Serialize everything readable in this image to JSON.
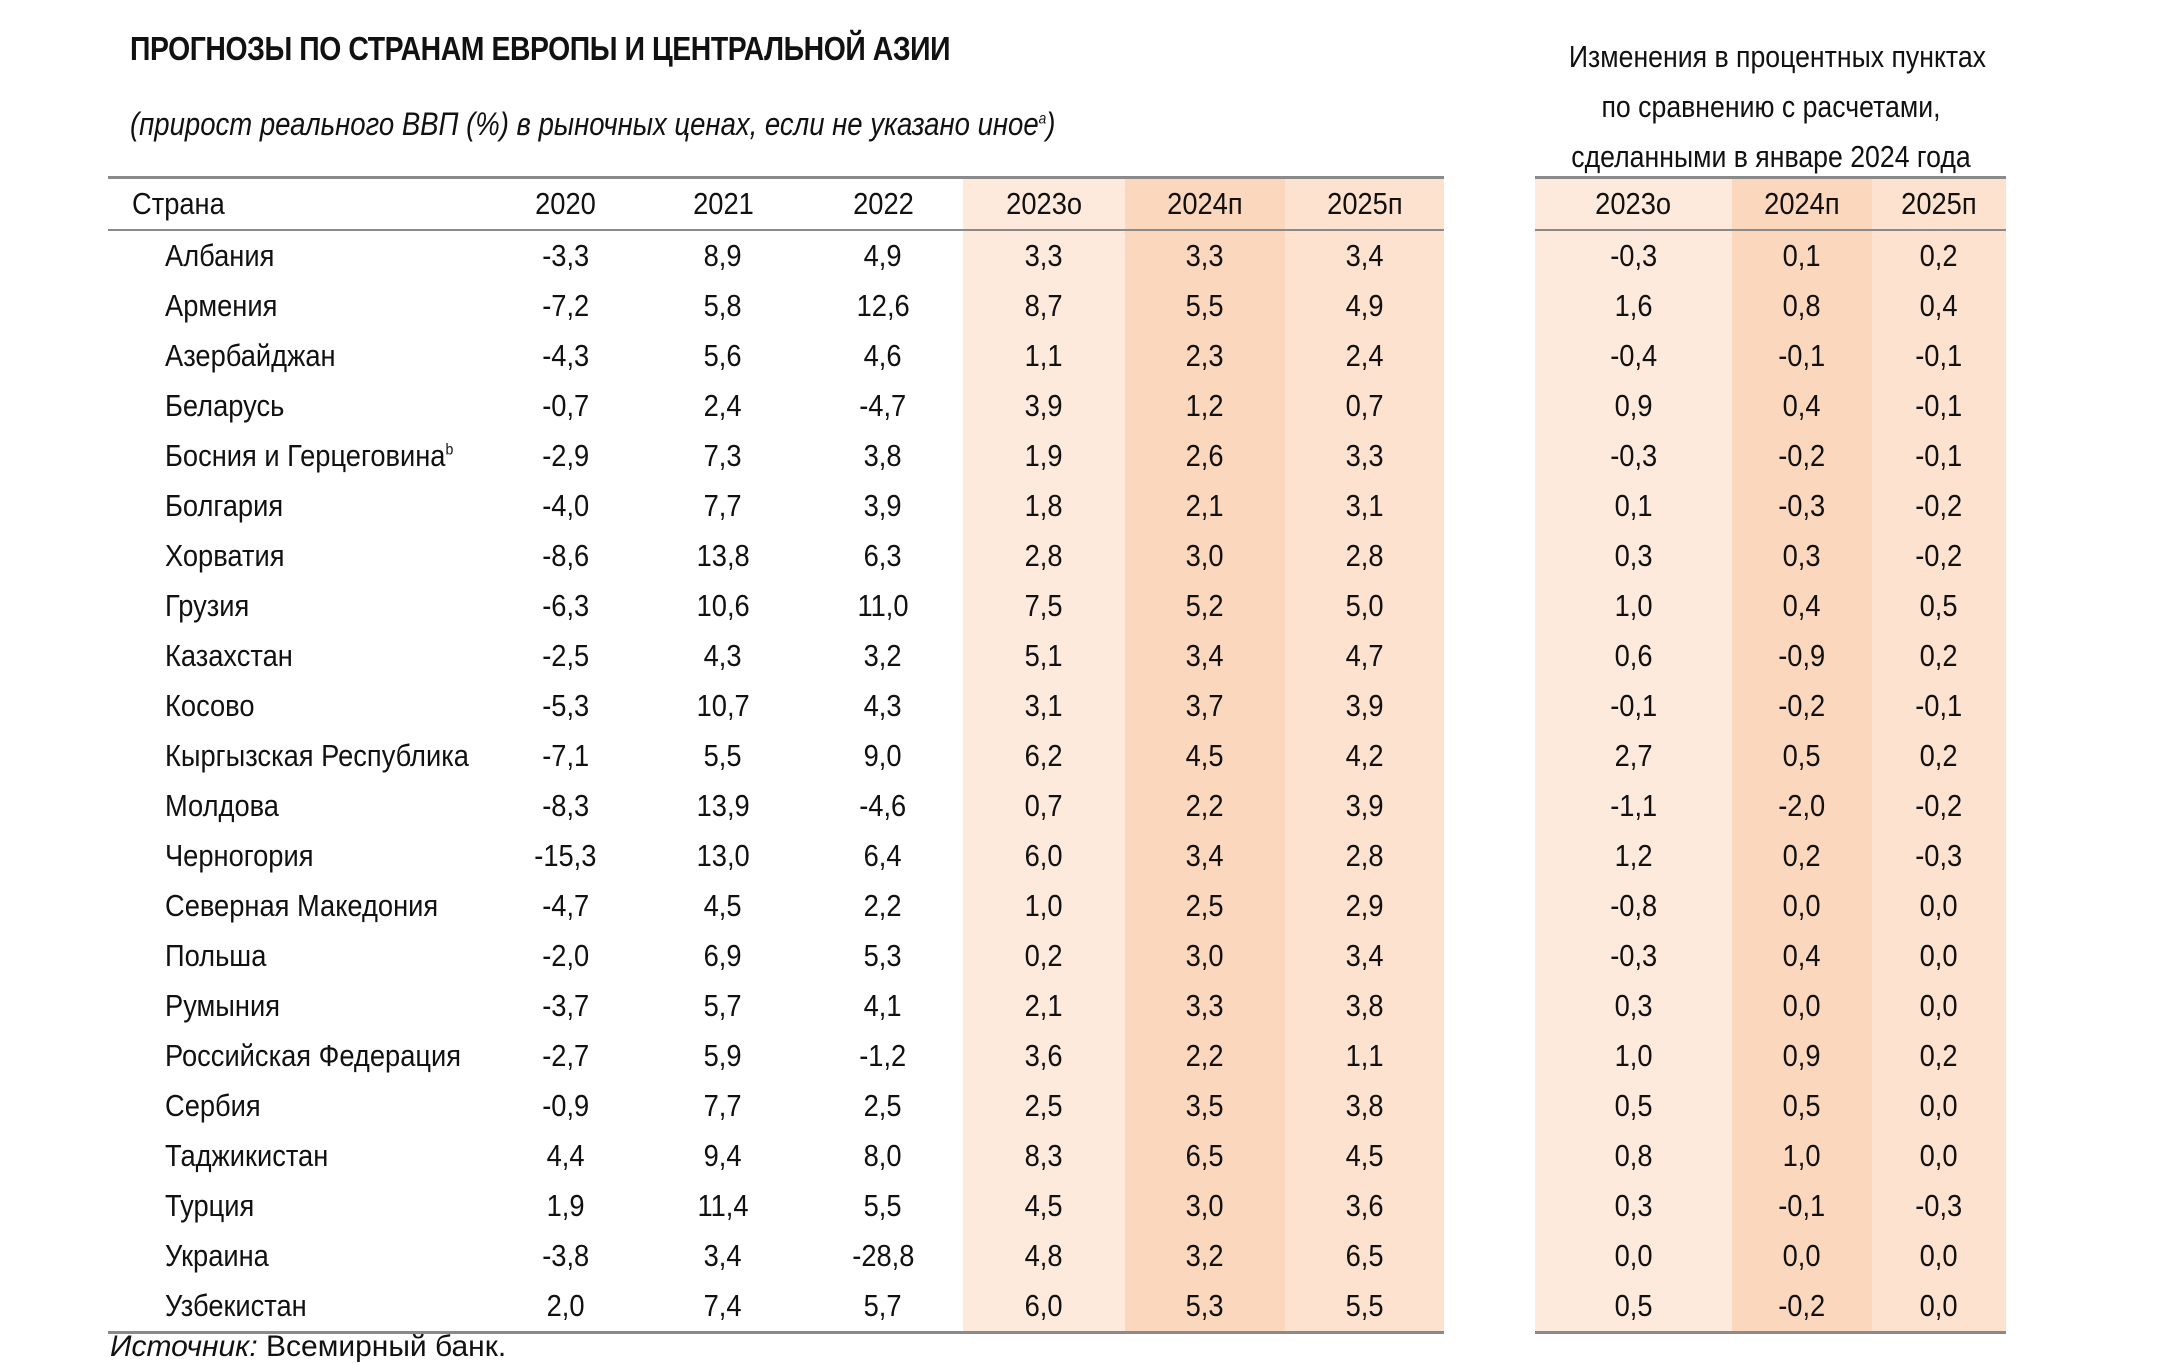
{
  "title": "ПРОГНОЗЫ ПО СТРАНАМ ЕВРОПЫ И ЦЕНТРАЛЬНОЙ АЗИИ",
  "subtitle": "(прирост реального ВВП (%) в рыночных ценах, если не указано иное",
  "subtitle_sup": "a",
  "right_header": [
    "Изменения в процентных пунктах",
    "по сравнению с расчетами,",
    "сделанными в январе 2024 года"
  ],
  "columns": {
    "country": "Страна",
    "main": [
      "2020",
      "2021",
      "2022",
      "2023о",
      "2024п",
      "2025п"
    ],
    "change": [
      "2023о",
      "2024п",
      "2025п"
    ]
  },
  "rows": [
    {
      "country": "Албания",
      "sup": "",
      "values": [
        "-3,3",
        "8,9",
        "4,9",
        "3,3",
        "3,3",
        "3,4"
      ],
      "changes": [
        "-0,3",
        "0,1",
        "0,2"
      ]
    },
    {
      "country": "Армения",
      "sup": "",
      "values": [
        "-7,2",
        "5,8",
        "12,6",
        "8,7",
        "5,5",
        "4,9"
      ],
      "changes": [
        "1,6",
        "0,8",
        "0,4"
      ]
    },
    {
      "country": "Азербайджан",
      "sup": "",
      "values": [
        "-4,3",
        "5,6",
        "4,6",
        "1,1",
        "2,3",
        "2,4"
      ],
      "changes": [
        "-0,4",
        "-0,1",
        "-0,1"
      ]
    },
    {
      "country": "Беларусь",
      "sup": "",
      "values": [
        "-0,7",
        "2,4",
        "-4,7",
        "3,9",
        "1,2",
        "0,7"
      ],
      "changes": [
        "0,9",
        "0,4",
        "-0,1"
      ]
    },
    {
      "country": "Босния и Герцеговина",
      "sup": "b",
      "values": [
        "-2,9",
        "7,3",
        "3,8",
        "1,9",
        "2,6",
        "3,3"
      ],
      "changes": [
        "-0,3",
        "-0,2",
        "-0,1"
      ]
    },
    {
      "country": "Болгария",
      "sup": "",
      "values": [
        "-4,0",
        "7,7",
        "3,9",
        "1,8",
        "2,1",
        "3,1"
      ],
      "changes": [
        "0,1",
        "-0,3",
        "-0,2"
      ]
    },
    {
      "country": "Хорватия",
      "sup": "",
      "values": [
        "-8,6",
        "13,8",
        "6,3",
        "2,8",
        "3,0",
        "2,8"
      ],
      "changes": [
        "0,3",
        "0,3",
        "-0,2"
      ]
    },
    {
      "country": "Грузия",
      "sup": "",
      "values": [
        "-6,3",
        "10,6",
        "11,0",
        "7,5",
        "5,2",
        "5,0"
      ],
      "changes": [
        "1,0",
        "0,4",
        "0,5"
      ]
    },
    {
      "country": "Казахстан",
      "sup": "",
      "values": [
        "-2,5",
        "4,3",
        "3,2",
        "5,1",
        "3,4",
        "4,7"
      ],
      "changes": [
        "0,6",
        "-0,9",
        "0,2"
      ]
    },
    {
      "country": "Косово",
      "sup": "",
      "values": [
        "-5,3",
        "10,7",
        "4,3",
        "3,1",
        "3,7",
        "3,9"
      ],
      "changes": [
        "-0,1",
        "-0,2",
        "-0,1"
      ]
    },
    {
      "country": "Кыргызская Республика",
      "sup": "",
      "values": [
        "-7,1",
        "5,5",
        "9,0",
        "6,2",
        "4,5",
        "4,2"
      ],
      "changes": [
        "2,7",
        "0,5",
        "0,2"
      ]
    },
    {
      "country": "Молдова",
      "sup": "",
      "values": [
        "-8,3",
        "13,9",
        "-4,6",
        "0,7",
        "2,2",
        "3,9"
      ],
      "changes": [
        "-1,1",
        "-2,0",
        "-0,2"
      ]
    },
    {
      "country": "Черногория",
      "sup": "",
      "values": [
        "-15,3",
        "13,0",
        "6,4",
        "6,0",
        "3,4",
        "2,8"
      ],
      "changes": [
        "1,2",
        "0,2",
        "-0,3"
      ]
    },
    {
      "country": "Северная Македония",
      "sup": "",
      "values": [
        "-4,7",
        "4,5",
        "2,2",
        "1,0",
        "2,5",
        "2,9"
      ],
      "changes": [
        "-0,8",
        "0,0",
        "0,0"
      ]
    },
    {
      "country": "Польша",
      "sup": "",
      "values": [
        "-2,0",
        "6,9",
        "5,3",
        "0,2",
        "3,0",
        "3,4"
      ],
      "changes": [
        "-0,3",
        "0,4",
        "0,0"
      ]
    },
    {
      "country": "Румыния",
      "sup": "",
      "values": [
        "-3,7",
        "5,7",
        "4,1",
        "2,1",
        "3,3",
        "3,8"
      ],
      "changes": [
        "0,3",
        "0,0",
        "0,0"
      ]
    },
    {
      "country": "Российская Федерация",
      "sup": "",
      "values": [
        "-2,7",
        "5,9",
        "-1,2",
        "3,6",
        "2,2",
        "1,1"
      ],
      "changes": [
        "1,0",
        "0,9",
        "0,2"
      ]
    },
    {
      "country": "Сербия",
      "sup": "",
      "values": [
        "-0,9",
        "7,7",
        "2,5",
        "2,5",
        "3,5",
        "3,8"
      ],
      "changes": [
        "0,5",
        "0,5",
        "0,0"
      ]
    },
    {
      "country": "Таджикистан",
      "sup": "",
      "values": [
        "4,4",
        "9,4",
        "8,0",
        "8,3",
        "6,5",
        "4,5"
      ],
      "changes": [
        "0,8",
        "1,0",
        "0,0"
      ]
    },
    {
      "country": "Турция",
      "sup": "",
      "values": [
        "1,9",
        "11,4",
        "5,5",
        "4,5",
        "3,0",
        "3,6"
      ],
      "changes": [
        "0,3",
        "-0,1",
        "-0,3"
      ]
    },
    {
      "country": "Украина",
      "sup": "",
      "values": [
        "-3,8",
        "3,4",
        "-28,8",
        "4,8",
        "3,2",
        "6,5"
      ],
      "changes": [
        "0,0",
        "0,0",
        "0,0"
      ]
    },
    {
      "country": "Узбекистан",
      "sup": "",
      "values": [
        "2,0",
        "7,4",
        "5,7",
        "6,0",
        "5,3",
        "5,5"
      ],
      "changes": [
        "0,5",
        "-0,2",
        "0,0"
      ]
    }
  ],
  "source_label": "Источник:",
  "source_text": " Всемирный банк.",
  "colors": {
    "fill_light": "#fdeadc",
    "fill_dark": "#fbd7bd",
    "rule": "#8a8a8a"
  }
}
